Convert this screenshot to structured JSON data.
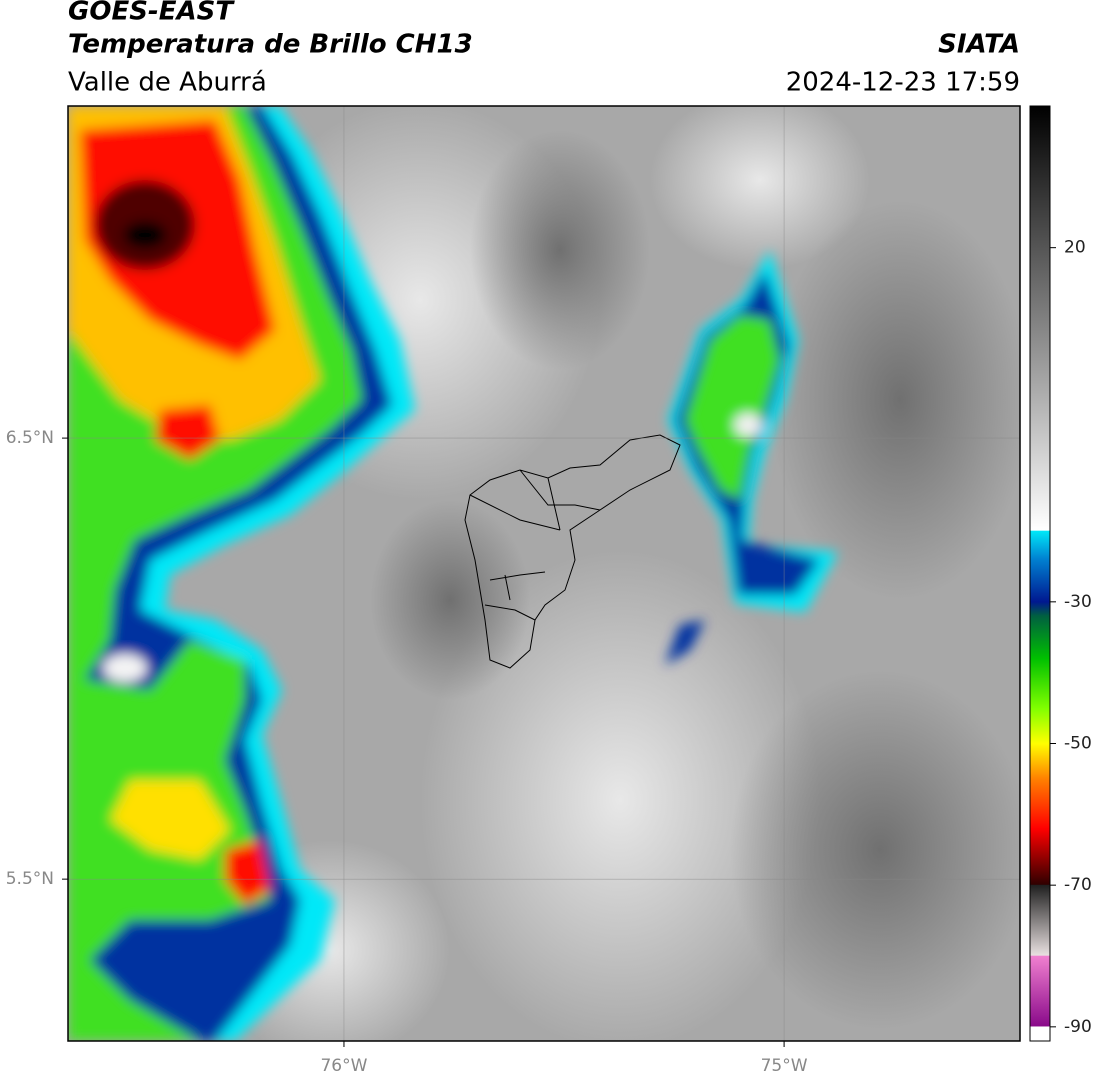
{
  "header": {
    "title": "GOES-EAST",
    "subtitle": "Temperatura de Brillo CH13",
    "region": "Valle de Aburrá",
    "source": "SIATA",
    "datetime": "2024-12-23 17:59"
  },
  "map": {
    "xlim": [
      -76.627,
      -74.464
    ],
    "ylim": [
      5.133,
      7.253
    ],
    "xticks": [
      {
        "value": -76,
        "label": "76°W"
      },
      {
        "value": -75,
        "label": "75°W"
      }
    ],
    "yticks": [
      {
        "value": 6.5,
        "label": "6.5°N"
      },
      {
        "value": 5.5,
        "label": "5.5°N"
      }
    ],
    "grid": true
  },
  "colorbar": {
    "lim": [
      -92,
      40
    ],
    "ticks": [
      -90,
      -70,
      -50,
      -30,
      20
    ],
    "stops": [
      {
        "value": -92,
        "color": "#ffffff"
      },
      {
        "value": -90,
        "color": "#ffffff"
      },
      {
        "value": -89.9,
        "color": "#8a0a8a"
      },
      {
        "value": -80,
        "color": "#f080d0"
      },
      {
        "value": -79.9,
        "color": "#e8e0e0"
      },
      {
        "value": -70,
        "color": "#202020"
      },
      {
        "value": -69.9,
        "color": "#300000"
      },
      {
        "value": -62,
        "color": "#ff0000"
      },
      {
        "value": -55,
        "color": "#ff8000"
      },
      {
        "value": -50,
        "color": "#ffff00"
      },
      {
        "value": -45,
        "color": "#80ff00"
      },
      {
        "value": -38,
        "color": "#00c000"
      },
      {
        "value": -32,
        "color": "#006040"
      },
      {
        "value": -30,
        "color": "#001890"
      },
      {
        "value": -24,
        "color": "#0080d0"
      },
      {
        "value": -20,
        "color": "#00e8f8"
      },
      {
        "value": -19.9,
        "color": "#ffffff"
      },
      {
        "value": 40,
        "color": "#000000"
      }
    ]
  }
}
